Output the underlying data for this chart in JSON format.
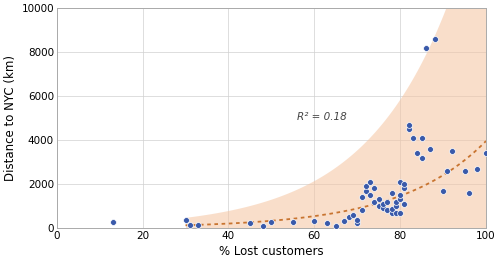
{
  "scatter_x": [
    13,
    30,
    31,
    33,
    45,
    48,
    50,
    55,
    60,
    63,
    65,
    67,
    68,
    69,
    70,
    70,
    71,
    71,
    72,
    72,
    73,
    73,
    74,
    74,
    75,
    75,
    76,
    76,
    77,
    77,
    78,
    78,
    78,
    79,
    79,
    79,
    80,
    80,
    80,
    80,
    81,
    81,
    81,
    82,
    82,
    83,
    84,
    85,
    85,
    86,
    87,
    88,
    90,
    91,
    92,
    95,
    96,
    98,
    100
  ],
  "scatter_y": [
    280,
    350,
    110,
    150,
    200,
    100,
    250,
    280,
    300,
    200,
    100,
    300,
    500,
    600,
    200,
    350,
    800,
    1400,
    1700,
    1900,
    1500,
    2100,
    1200,
    1800,
    1000,
    1300,
    900,
    1100,
    800,
    1200,
    700,
    850,
    1600,
    700,
    1000,
    1200,
    700,
    1300,
    1500,
    2100,
    1100,
    1800,
    2000,
    4500,
    4700,
    4100,
    3400,
    3200,
    4100,
    8200,
    3600,
    8600,
    1700,
    2600,
    3500,
    2600,
    1600,
    2700,
    3400
  ],
  "dot_color": "#3a5aaa",
  "line_color": "#c87430",
  "fill_color": "#f5c4a0",
  "fill_alpha": 0.55,
  "r2_text": "R² = 0.18",
  "r2_x": 56,
  "r2_y": 4900,
  "xlabel": "% Lost customers",
  "ylabel": "Distance to NYC (km)",
  "xlim": [
    0,
    100
  ],
  "ylim": [
    0,
    10000
  ],
  "xticks": [
    0,
    20,
    40,
    60,
    80,
    100
  ],
  "yticks": [
    0,
    2000,
    4000,
    6000,
    8000,
    10000
  ],
  "grid_color": "#d0d0d0",
  "background_color": "#ffffff",
  "dot_size": 18,
  "dot_edgecolor": "#ffffff",
  "dot_linewidth": 0.5,
  "fill_start_x": 30
}
